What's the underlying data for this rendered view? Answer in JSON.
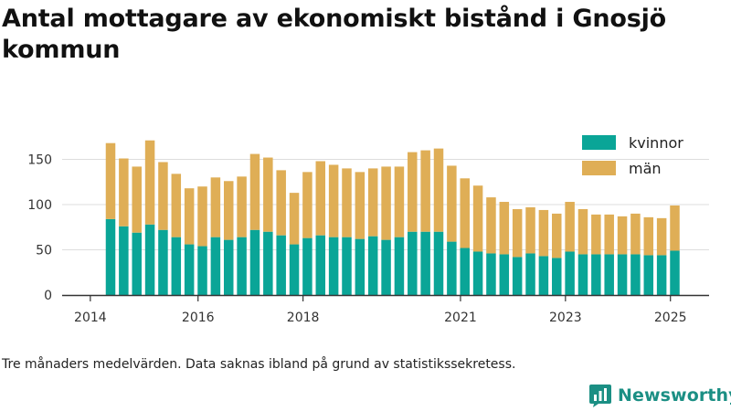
{
  "title": "Antal mottagare av ekonomiskt bistånd i Gnosjö kommun",
  "footnote": "Tre månaders medelvärden. Data saknas ibland på grund av statistikssekretess.",
  "brand": {
    "name": "Newsworthy",
    "color": "#1b8f84"
  },
  "chart_data": {
    "type": "bar",
    "stacked": true,
    "x_start": "2014-05",
    "x_step": "3 months",
    "x_ticks": [
      "2014",
      "2016",
      "2018",
      "2021",
      "2023",
      "2025"
    ],
    "y_ticks": [
      0,
      50,
      100,
      150
    ],
    "ylim": [
      0,
      180
    ],
    "grid": true,
    "legend_position": "top-right",
    "series": [
      {
        "name": "kvinnor",
        "color": "#0aa597",
        "values": [
          84,
          76,
          69,
          78,
          72,
          64,
          56,
          54,
          64,
          61,
          64,
          72,
          70,
          66,
          56,
          63,
          66,
          64,
          64,
          62,
          65,
          61,
          64,
          70,
          70,
          70,
          59,
          52,
          48,
          46,
          45,
          42,
          46,
          43,
          41,
          48,
          45,
          45,
          45,
          45,
          45,
          44,
          44,
          49
        ]
      },
      {
        "name": "män",
        "color": "#dfae56",
        "values": [
          84,
          75,
          73,
          93,
          75,
          70,
          62,
          66,
          66,
          65,
          67,
          84,
          82,
          72,
          57,
          73,
          82,
          80,
          76,
          74,
          75,
          81,
          78,
          88,
          90,
          92,
          84,
          77,
          73,
          62,
          58,
          53,
          51,
          51,
          49,
          55,
          50,
          44,
          44,
          42,
          45,
          42,
          41,
          50
        ]
      }
    ]
  }
}
